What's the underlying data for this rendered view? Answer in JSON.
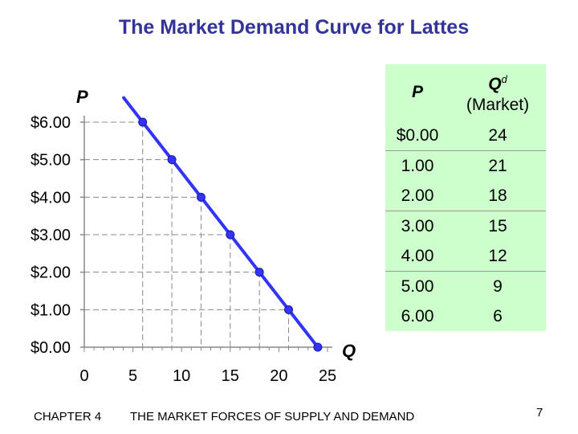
{
  "title": "The Market Demand Curve for Lattes",
  "footer": {
    "chapter": "CHAPTER 4",
    "text": "THE MARKET FORCES OF SUPPLY AND DEMAND",
    "page": "7"
  },
  "colors": {
    "title": "#333399",
    "curve": "#3333ff",
    "table_bg": "#ccffcc"
  },
  "table": {
    "header_p": "P",
    "header_q": "Q",
    "header_q_sup": "d",
    "header_q_sub": "(Market)",
    "rows": [
      {
        "p": "$0.00",
        "q": "24"
      },
      {
        "p": "1.00",
        "q": "21"
      },
      {
        "p": "2.00",
        "q": "18"
      },
      {
        "p": "3.00",
        "q": "15"
      },
      {
        "p": "4.00",
        "q": "12"
      },
      {
        "p": "5.00",
        "q": "9"
      },
      {
        "p": "6.00",
        "q": "6"
      }
    ]
  },
  "chart_data": {
    "type": "line",
    "title": "The Market Demand Curve for Lattes",
    "xlabel": "Q",
    "ylabel": "P",
    "xlim": [
      0,
      25
    ],
    "ylim": [
      0,
      6
    ],
    "x_ticks": [
      0,
      5,
      10,
      15,
      20,
      25
    ],
    "x_tick_labels": [
      "0",
      "5",
      "10",
      "15",
      "20",
      "25"
    ],
    "y_ticks": [
      0,
      1,
      2,
      3,
      4,
      5,
      6
    ],
    "y_tick_labels": [
      "$0.00",
      "$1.00",
      "$2.00",
      "$3.00",
      "$4.00",
      "$5.00",
      "$6.00"
    ],
    "grid": false,
    "dashed_guides": true,
    "series": [
      {
        "x": [
          6,
          9,
          12,
          15,
          18,
          21,
          24
        ],
        "y": [
          6,
          5,
          4,
          3,
          2,
          1,
          0
        ]
      }
    ]
  }
}
